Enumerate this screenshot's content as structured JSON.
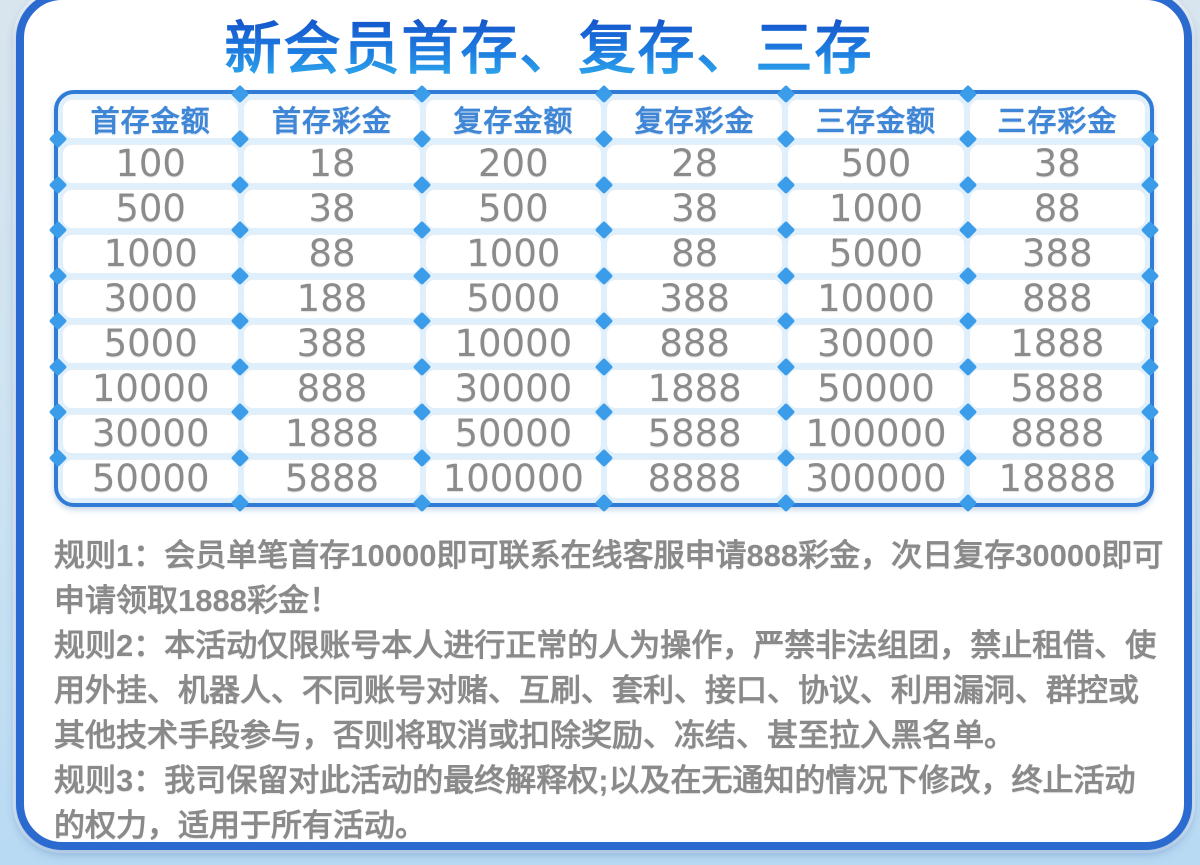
{
  "title": "新会员首存、复存、三存",
  "table": {
    "headers": [
      "首存金额",
      "首存彩金",
      "复存金额",
      "复存彩金",
      "三存金额",
      "三存彩金"
    ],
    "rows": [
      [
        "100",
        "18",
        "200",
        "28",
        "500",
        "38"
      ],
      [
        "500",
        "38",
        "500",
        "38",
        "1000",
        "88"
      ],
      [
        "1000",
        "88",
        "1000",
        "88",
        "5000",
        "388"
      ],
      [
        "3000",
        "188",
        "5000",
        "388",
        "10000",
        "888"
      ],
      [
        "5000",
        "388",
        "10000",
        "888",
        "30000",
        "1888"
      ],
      [
        "10000",
        "888",
        "30000",
        "1888",
        "50000",
        "5888"
      ],
      [
        "30000",
        "1888",
        "50000",
        "5888",
        "100000",
        "8888"
      ],
      [
        "50000",
        "5888",
        "100000",
        "8888",
        "300000",
        "18888"
      ]
    ]
  },
  "rules": [
    "规则1：会员单笔首存10000即可联系在线客服申请888彩金，次日复存30000即可申请领取1888彩金！",
    "规则2：本活动仅限账号本人进行正常的人为操作，严禁非法组团，禁止租借、使用外挂、机器人、不同账号对赌、互刷、套利、接口、协议、利用漏洞、群控或其他技术手段参与，否则将取消或扣除奖励、冻结、甚至拉入黑名单。",
    "规则3：我司保留对此活动的最终解释权;以及在无通知的情况下修改，终止活动的权力，适用于所有活动。"
  ],
  "colors": {
    "panel_border": "#2b6ace",
    "table_border": "#2f7bd6",
    "table_gap_bg": "#dfeffb",
    "diamond_node": "#3b9ce9",
    "header_text": "#3f86d6",
    "number_text": "#8b8b8b",
    "rules_text": "#8a8a8a",
    "title_gradient_top": "#1558cd",
    "title_gradient_bottom": "#2fa9ec",
    "page_background": "#cde3f2"
  }
}
